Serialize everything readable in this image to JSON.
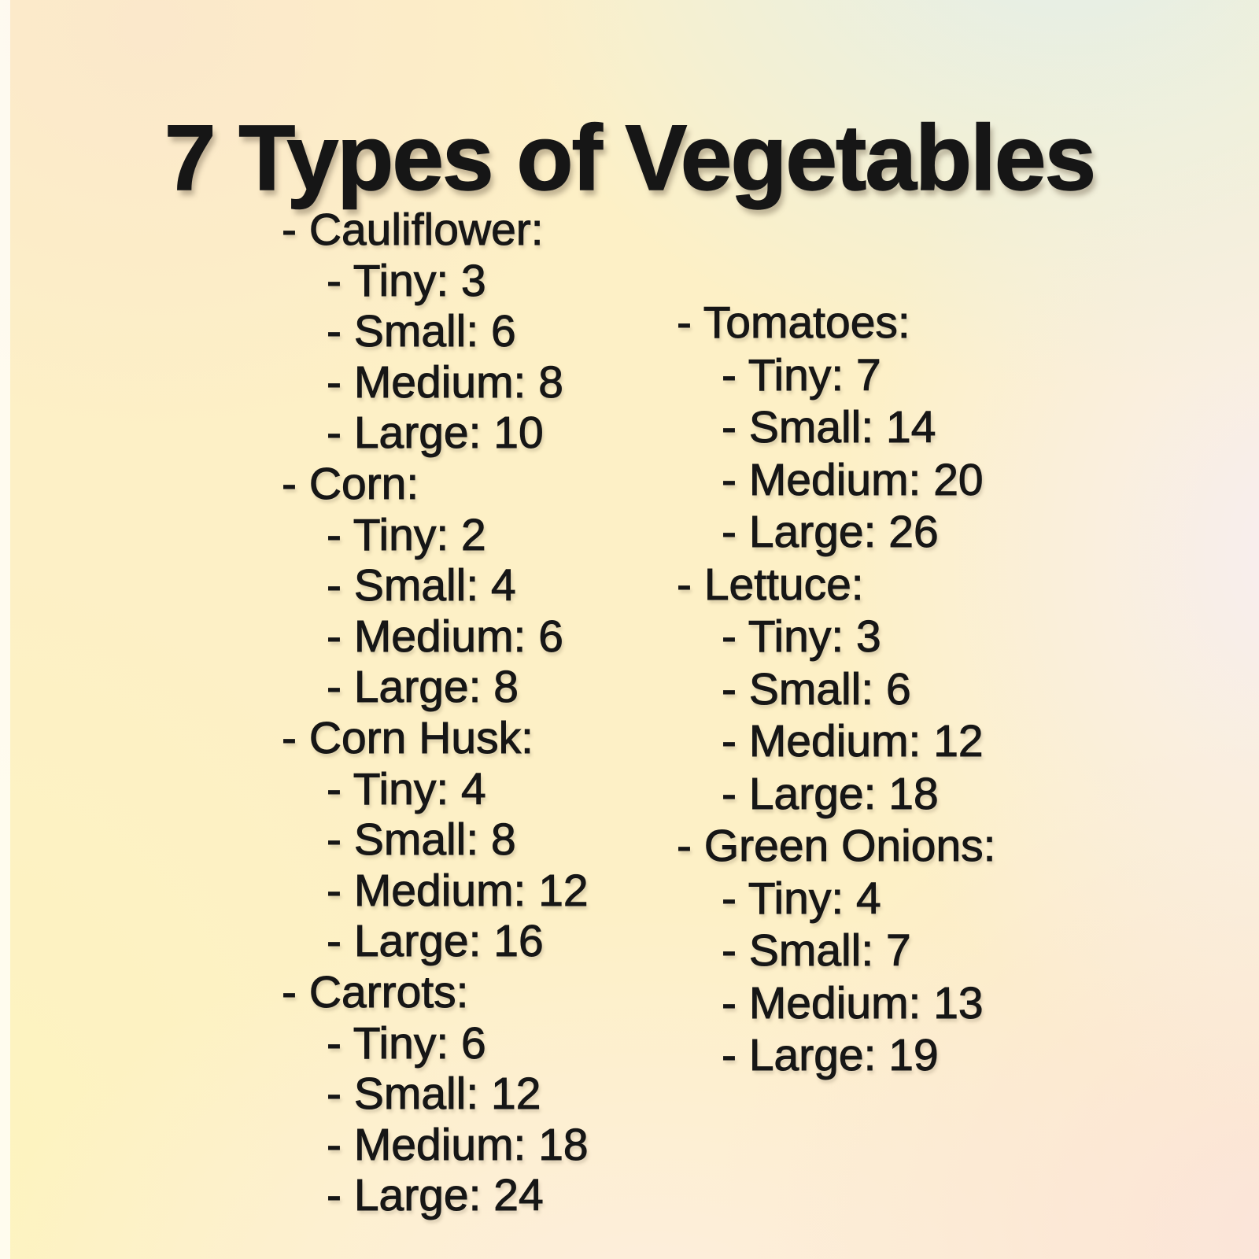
{
  "title": "7 Types of Vegetables",
  "bullet": "-",
  "size_labels": [
    "Tiny",
    "Small",
    "Medium",
    "Large"
  ],
  "columns": [
    {
      "id": "left",
      "sections": [
        {
          "name": "Cauliflower",
          "items": [
            {
              "label": "Tiny",
              "value": 3
            },
            {
              "label": "Small",
              "value": 6
            },
            {
              "label": "Medium",
              "value": 8
            },
            {
              "label": "Large",
              "value": 10
            }
          ]
        },
        {
          "name": "Corn",
          "items": [
            {
              "label": "Tiny",
              "value": 2
            },
            {
              "label": "Small",
              "value": 4
            },
            {
              "label": "Medium",
              "value": 6
            },
            {
              "label": "Large",
              "value": 8
            }
          ]
        },
        {
          "name": "Corn Husk",
          "items": [
            {
              "label": "Tiny",
              "value": 4
            },
            {
              "label": "Small",
              "value": 8
            },
            {
              "label": "Medium",
              "value": 12
            },
            {
              "label": "Large",
              "value": 16
            }
          ]
        },
        {
          "name": "Carrots",
          "items": [
            {
              "label": "Tiny",
              "value": 6
            },
            {
              "label": "Small",
              "value": 12
            },
            {
              "label": "Medium",
              "value": 18
            },
            {
              "label": "Large",
              "value": 24
            }
          ]
        }
      ]
    },
    {
      "id": "right",
      "sections": [
        {
          "name": "Tomatoes",
          "items": [
            {
              "label": "Tiny",
              "value": 7
            },
            {
              "label": "Small",
              "value": 14
            },
            {
              "label": "Medium",
              "value": 20
            },
            {
              "label": "Large",
              "value": 26
            }
          ]
        },
        {
          "name": "Lettuce",
          "items": [
            {
              "label": "Tiny",
              "value": 3
            },
            {
              "label": "Small",
              "value": 6
            },
            {
              "label": "Medium",
              "value": 12
            },
            {
              "label": "Large",
              "value": 18
            }
          ]
        },
        {
          "name": "Green Onions",
          "items": [
            {
              "label": "Tiny",
              "value": 4
            },
            {
              "label": "Small",
              "value": 7
            },
            {
              "label": "Medium",
              "value": 13
            },
            {
              "label": "Large",
              "value": 19
            }
          ]
        }
      ]
    }
  ],
  "colors": {
    "text": "#161616",
    "bg_top_left": "#fbe8cb",
    "bg_top_right": "#e2efec",
    "bg_center": "#fdf0c6",
    "bg_right_middle": "#f7eef1",
    "bg_bottom_right": "#fbe4da",
    "bg_bottom_center": "#fdeedd",
    "bg_bottom_left": "#fdf4bf"
  }
}
